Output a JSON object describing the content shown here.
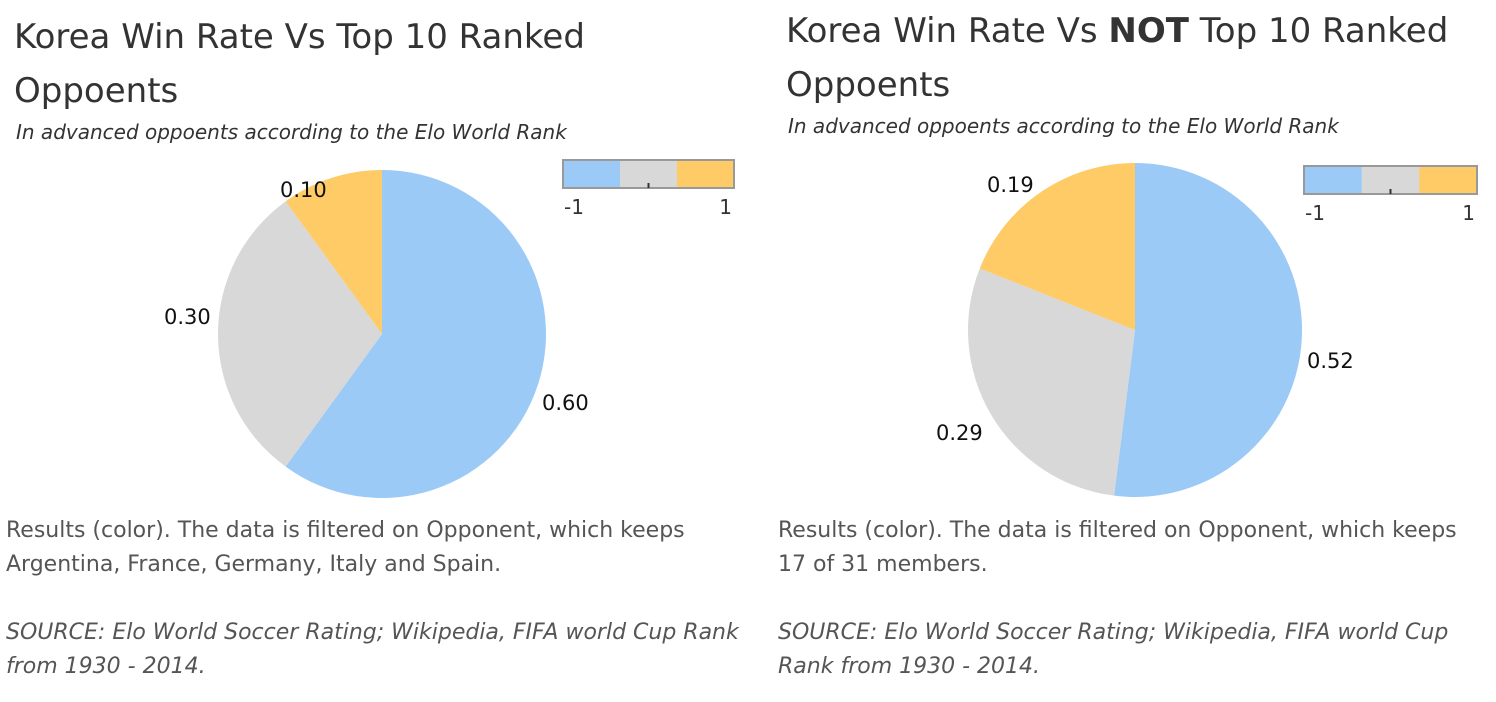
{
  "chart_data": [
    {
      "type": "pie",
      "title_parts": [
        "Korea Win Rate Vs ",
        "",
        "Top 10 Ranked Oppoents"
      ],
      "subtitle": "In advanced oppoents according to the Elo World Rank",
      "slices": [
        {
          "value": 0.6,
          "label": "0.60",
          "color": "#9ccaf7"
        },
        {
          "value": 0.3,
          "label": "0.30",
          "color": "#d8d8d8"
        },
        {
          "value": 0.1,
          "label": "0.10",
          "color": "#fecb66"
        }
      ],
      "legend": {
        "type": "color-scale",
        "min_label": "-1",
        "max_label": "1",
        "colors": [
          "#9ccaf7",
          "#d8d8d8",
          "#fecb66"
        ],
        "placement": "top-right"
      },
      "caption": "Results (color). The data is filtered on Opponent, which keeps Argentina, France, Germany, Italy and Spain.",
      "source": "SOURCE: Elo World Soccer Rating; Wikipedia, FIFA world Cup Rank from 1930 - 2014."
    },
    {
      "type": "pie",
      "title_parts": [
        "Korea Win Rate Vs ",
        "NOT",
        " Top 10 Ranked Oppoents"
      ],
      "subtitle": "In advanced oppoents according to the Elo World Rank",
      "slices": [
        {
          "value": 0.52,
          "label": "0.52",
          "color": "#9ccaf7"
        },
        {
          "value": 0.29,
          "label": "0.29",
          "color": "#d8d8d8"
        },
        {
          "value": 0.19,
          "label": "0.19",
          "color": "#fecb66"
        }
      ],
      "legend": {
        "type": "color-scale",
        "min_label": "-1",
        "max_label": "1",
        "colors": [
          "#9ccaf7",
          "#d8d8d8",
          "#fecb66"
        ],
        "placement": "top-right"
      },
      "caption": "Results (color). The data is filtered on Opponent, which keeps 17 of 31 members.",
      "source": "SOURCE: Elo World Soccer Rating; Wikipedia, FIFA world Cup Rank from 1930 - 2014."
    }
  ]
}
